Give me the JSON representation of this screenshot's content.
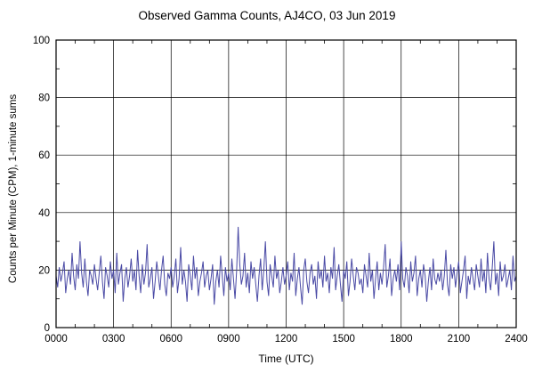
{
  "chart_data": {
    "type": "line",
    "title": "Observed Gamma Counts, AJ4CO, 03 Jun 2019",
    "xlabel": "Time (UTC)",
    "ylabel": "Counts per Minute (CPM), 1-minute sums",
    "xlim_minutes": [
      0,
      1440
    ],
    "ylim": [
      0,
      100
    ],
    "x_tick_minutes": [
      0,
      180,
      360,
      540,
      720,
      900,
      1080,
      1260,
      1440
    ],
    "x_tick_labels": [
      "0000",
      "0300",
      "0600",
      "0900",
      "1200",
      "1500",
      "1800",
      "2100",
      "2400"
    ],
    "x_minor_tick_interval_minutes": 60,
    "y_ticks": [
      0,
      20,
      40,
      60,
      80,
      100
    ],
    "y_tick_labels": [
      "0",
      "20",
      "40",
      "60",
      "80",
      "100"
    ],
    "y_minor_tick_interval": 10,
    "grid": true,
    "grid_color": "#000000",
    "line_color": "#4a4aa5",
    "frame_color": "#000000",
    "background_color": "#ffffff",
    "sample_interval_minutes": 5,
    "values": [
      18,
      14,
      21,
      16,
      19,
      23,
      12,
      17,
      20,
      15,
      26,
      18,
      13,
      22,
      17,
      30,
      19,
      14,
      24,
      16,
      11,
      20,
      18,
      15,
      22,
      17,
      13,
      19,
      25,
      16,
      10,
      21,
      18,
      14,
      23,
      17,
      20,
      12,
      26,
      15,
      19,
      22,
      9,
      17,
      21,
      14,
      18,
      24,
      16,
      20,
      13,
      27,
      18,
      12,
      22,
      15,
      19,
      29,
      14,
      17,
      21,
      10,
      16,
      23,
      18,
      13,
      20,
      25,
      15,
      11,
      19,
      17,
      21,
      14,
      18,
      24,
      12,
      17,
      28,
      15,
      20,
      16,
      9,
      22,
      18,
      13,
      25,
      17,
      21,
      11,
      16,
      19,
      23,
      14,
      18,
      20,
      13,
      17,
      22,
      8,
      16,
      20,
      14,
      25,
      18,
      11,
      21,
      16,
      19,
      13,
      24,
      17,
      10,
      20,
      35,
      22,
      15,
      18,
      26,
      14,
      19,
      12,
      23,
      17,
      21,
      15,
      9,
      18,
      24,
      13,
      20,
      30,
      16,
      11,
      22,
      18,
      14,
      25,
      17,
      20,
      12,
      16,
      21,
      15,
      18,
      23,
      13,
      19,
      16,
      26,
      11,
      17,
      21,
      14,
      8,
      20,
      24,
      16,
      12,
      19,
      22,
      15,
      18,
      10,
      23,
      17,
      20,
      14,
      25,
      16,
      19,
      12,
      21,
      17,
      28,
      13,
      18,
      22,
      15,
      9,
      20,
      17,
      23,
      11,
      16,
      24,
      18,
      13,
      21,
      19,
      15,
      17,
      12,
      22,
      18,
      14,
      26,
      16,
      20,
      10,
      17,
      23,
      13,
      19,
      15,
      21,
      29,
      14,
      18,
      24,
      11,
      17,
      20,
      16,
      22,
      13,
      30,
      17,
      14,
      21,
      18,
      12,
      23,
      16,
      19,
      25,
      11,
      17,
      20,
      14,
      22,
      18,
      9,
      16,
      21,
      13,
      24,
      17,
      15,
      19,
      16,
      20,
      13,
      18,
      27,
      15,
      11,
      22,
      17,
      21,
      14,
      19,
      23,
      12,
      16,
      20,
      25,
      10,
      18,
      15,
      21,
      17,
      13,
      22,
      18,
      14,
      24,
      16,
      20,
      12,
      26,
      17,
      13,
      21,
      30,
      15,
      19,
      11,
      23,
      16,
      18,
      22,
      14,
      17,
      20,
      13,
      25,
      16,
      18
    ]
  }
}
